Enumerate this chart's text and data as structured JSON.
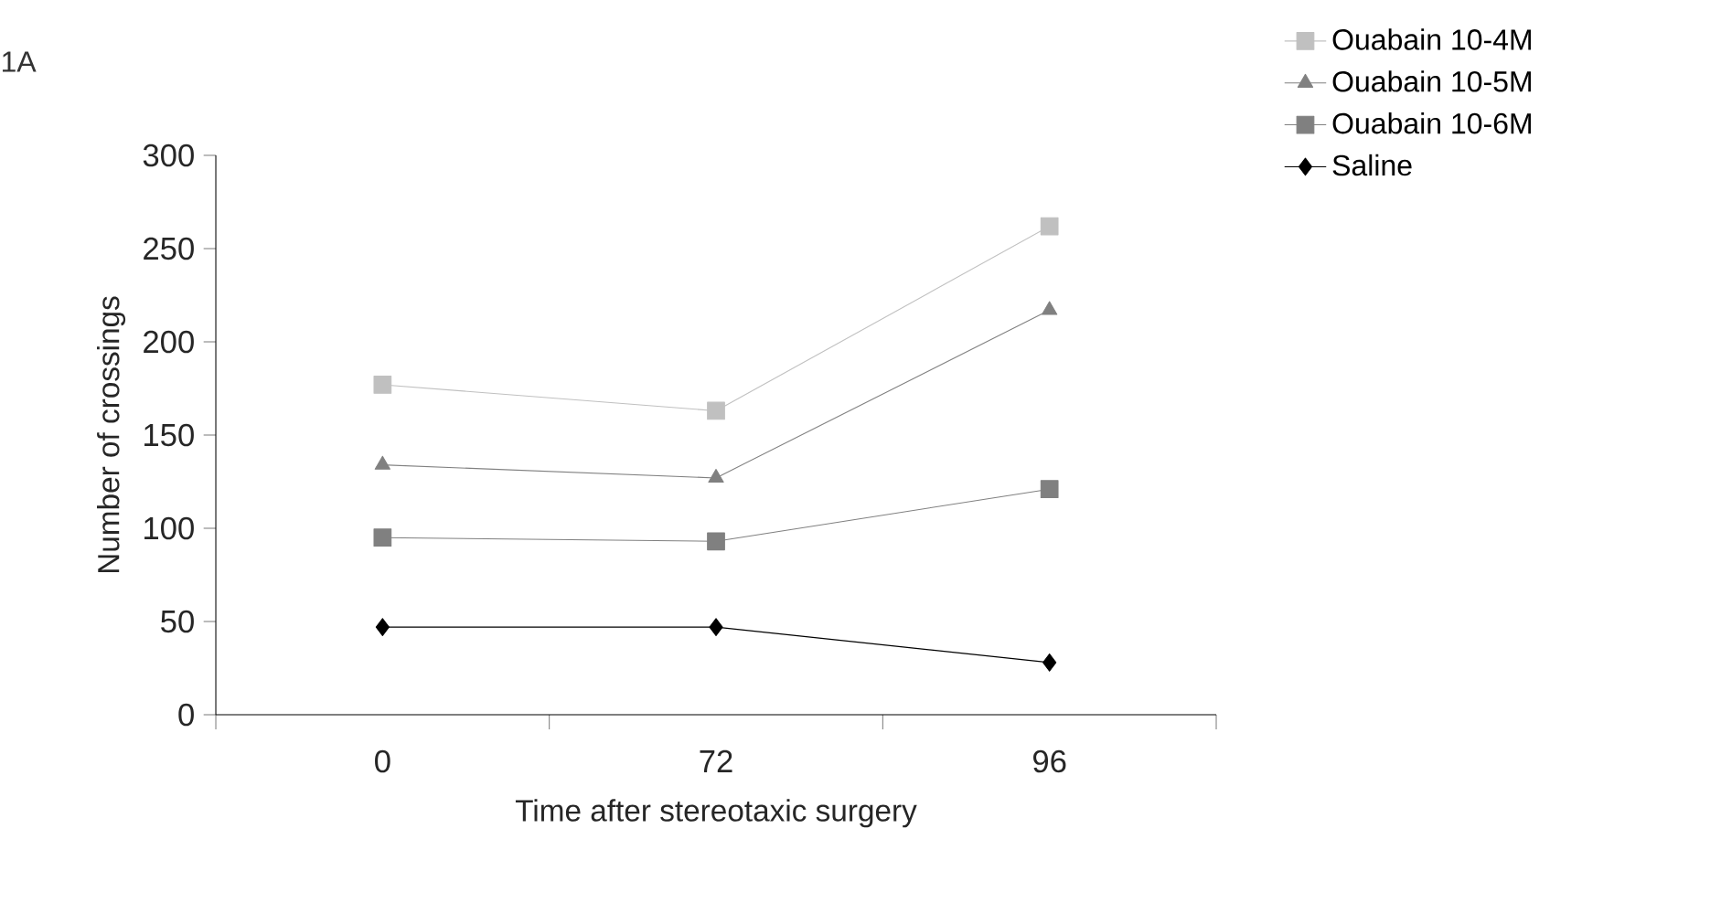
{
  "chart_data": {
    "type": "line",
    "title": "1A",
    "xlabel": "Time after stereotaxic surgery",
    "ylabel": "Number of crossings",
    "categories": [
      "0",
      "72",
      "96"
    ],
    "ylim": [
      0,
      300
    ],
    "yticks": [
      0,
      50,
      100,
      150,
      200,
      250,
      300
    ],
    "grid": false,
    "legend": "top right",
    "series": [
      {
        "name": "Ouabain 10-4M",
        "color": "#c0c0c0",
        "marker": "square",
        "values": [
          177,
          163,
          262
        ]
      },
      {
        "name": "Ouabain 10-5M",
        "color": "#808080",
        "marker": "triangle",
        "values": [
          134,
          127,
          217
        ]
      },
      {
        "name": "Ouabain 10-6M",
        "color": "#808080",
        "marker": "square",
        "values": [
          95,
          93,
          121
        ]
      },
      {
        "name": "Saline",
        "color": "#000000",
        "marker": "diamond",
        "values": [
          47,
          47,
          28
        ]
      }
    ]
  }
}
